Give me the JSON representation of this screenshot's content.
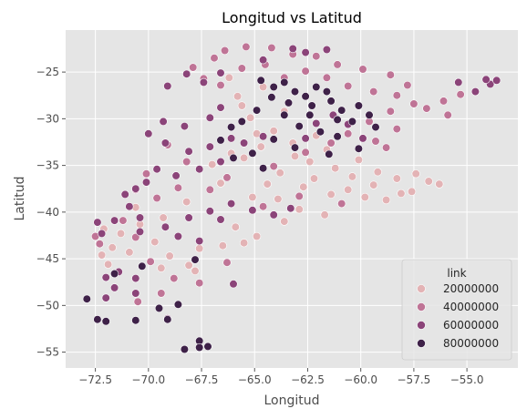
{
  "chart_data": {
    "type": "scatter",
    "title": "Longitud vs Latitud",
    "xlabel": "Longitud",
    "ylabel": "Latitud",
    "xlim": [
      -73.9,
      -52.6
    ],
    "ylim": [
      -56.7,
      -20.5
    ],
    "x_ticks": [
      -72.5,
      -70.0,
      -67.5,
      -65.0,
      -62.5,
      -60.0,
      -57.5,
      -55.0
    ],
    "x_tick_labels": [
      "−72.5",
      "−70.0",
      "−67.5",
      "−65.0",
      "−62.5",
      "−60.0",
      "−57.5",
      "−55.0"
    ],
    "y_ticks": [
      -25,
      -30,
      -35,
      -40,
      -45,
      -50,
      -55
    ],
    "y_tick_labels": [
      "−25",
      "−30",
      "−35",
      "−40",
      "−45",
      "−50",
      "−55"
    ],
    "grid": true,
    "legend": {
      "title": "link",
      "placement": "lower-right",
      "entries": [
        {
          "label": "20000000",
          "color": "#e3b3b5"
        },
        {
          "label": "40000000",
          "color": "#bf7496"
        },
        {
          "label": "60000000",
          "color": "#8b4479"
        },
        {
          "label": "80000000",
          "color": "#3e2148"
        }
      ]
    },
    "colors": {
      "background": "#e5e5e5",
      "grid": "#ffffff",
      "marker_edge": "#ffffff"
    },
    "series": [
      {
        "label": "20000000",
        "color": "#e3b3b5",
        "points": [
          [
            -65.5,
            -34.2
          ],
          [
            -64.7,
            -33.0
          ],
          [
            -63.8,
            -35.8
          ],
          [
            -62.4,
            -34.6
          ],
          [
            -61.2,
            -35.3
          ],
          [
            -60.4,
            -36.2
          ],
          [
            -59.2,
            -35.7
          ],
          [
            -58.3,
            -36.4
          ],
          [
            -57.4,
            -35.9
          ],
          [
            -56.8,
            -36.7
          ],
          [
            -56.3,
            -37.0
          ],
          [
            -58.1,
            -38.0
          ],
          [
            -59.8,
            -38.4
          ],
          [
            -61.4,
            -38.1
          ],
          [
            -62.7,
            -37.3
          ],
          [
            -63.9,
            -38.6
          ],
          [
            -62.9,
            -39.7
          ],
          [
            -61.7,
            -40.3
          ],
          [
            -60.6,
            -37.6
          ],
          [
            -59.4,
            -37.1
          ],
          [
            -58.8,
            -38.7
          ],
          [
            -57.6,
            -37.8
          ],
          [
            -63.2,
            -32.6
          ],
          [
            -62.1,
            -31.8
          ],
          [
            -64.1,
            -31.3
          ],
          [
            -65.2,
            -29.9
          ],
          [
            -63.6,
            -29.2
          ],
          [
            -65.8,
            -27.6
          ],
          [
            -64.6,
            -26.6
          ],
          [
            -66.2,
            -25.6
          ],
          [
            -65.6,
            -28.6
          ],
          [
            -64.9,
            -31.6
          ],
          [
            -66.1,
            -33.7
          ],
          [
            -67.0,
            -34.9
          ],
          [
            -63.1,
            -34.0
          ],
          [
            -62.2,
            -36.4
          ],
          [
            -60.1,
            -34.4
          ],
          [
            -61.6,
            -33.3
          ],
          [
            -64.4,
            -37.0
          ],
          [
            -65.1,
            -38.4
          ],
          [
            -66.6,
            -36.9
          ],
          [
            -68.2,
            -38.9
          ],
          [
            -69.3,
            -40.6
          ],
          [
            -70.4,
            -41.3
          ],
          [
            -71.3,
            -42.3
          ],
          [
            -71.7,
            -43.8
          ],
          [
            -72.2,
            -44.6
          ],
          [
            -71.9,
            -45.6
          ],
          [
            -70.9,
            -44.3
          ],
          [
            -69.7,
            -43.2
          ],
          [
            -69.0,
            -44.7
          ],
          [
            -68.1,
            -45.7
          ],
          [
            -67.6,
            -43.9
          ],
          [
            -66.5,
            -43.6
          ],
          [
            -65.5,
            -43.3
          ],
          [
            -65.9,
            -41.6
          ],
          [
            -64.9,
            -42.6
          ],
          [
            -63.6,
            -41.0
          ],
          [
            -70.6,
            -39.5
          ],
          [
            -72.1,
            -41.8
          ],
          [
            -69.4,
            -46.0
          ],
          [
            -67.8,
            -46.3
          ]
        ]
      },
      {
        "label": "40000000",
        "color": "#bf7496",
        "points": [
          [
            -66.4,
            -22.7
          ],
          [
            -65.4,
            -22.3
          ],
          [
            -64.2,
            -22.4
          ],
          [
            -63.2,
            -23.1
          ],
          [
            -62.1,
            -23.3
          ],
          [
            -61.1,
            -24.2
          ],
          [
            -59.9,
            -24.7
          ],
          [
            -58.6,
            -25.3
          ],
          [
            -57.8,
            -26.4
          ],
          [
            -58.3,
            -27.5
          ],
          [
            -59.4,
            -27.1
          ],
          [
            -60.6,
            -26.5
          ],
          [
            -61.6,
            -25.6
          ],
          [
            -62.6,
            -24.9
          ],
          [
            -63.6,
            -25.6
          ],
          [
            -64.5,
            -24.2
          ],
          [
            -65.6,
            -24.6
          ],
          [
            -66.9,
            -23.5
          ],
          [
            -67.9,
            -24.5
          ],
          [
            -67.4,
            -25.7
          ],
          [
            -66.6,
            -26.4
          ],
          [
            -57.5,
            -28.4
          ],
          [
            -56.9,
            -28.9
          ],
          [
            -56.1,
            -28.1
          ],
          [
            -55.3,
            -27.4
          ],
          [
            -55.9,
            -29.6
          ],
          [
            -58.6,
            -29.2
          ],
          [
            -59.6,
            -30.3
          ],
          [
            -60.6,
            -31.6
          ],
          [
            -59.3,
            -32.4
          ],
          [
            -58.3,
            -31.1
          ],
          [
            -58.8,
            -33.1
          ],
          [
            -61.4,
            -32.6
          ],
          [
            -62.6,
            -33.6
          ],
          [
            -64.1,
            -35.1
          ],
          [
            -66.3,
            -36.3
          ],
          [
            -67.1,
            -37.6
          ],
          [
            -68.6,
            -37.4
          ],
          [
            -69.6,
            -38.5
          ],
          [
            -70.6,
            -37.6
          ],
          [
            -70.1,
            -35.9
          ],
          [
            -68.2,
            -34.6
          ],
          [
            -69.1,
            -32.8
          ],
          [
            -70.6,
            -42.7
          ],
          [
            -71.2,
            -40.9
          ],
          [
            -72.3,
            -43.4
          ],
          [
            -72.5,
            -42.6
          ],
          [
            -69.9,
            -45.3
          ],
          [
            -68.8,
            -47.1
          ],
          [
            -69.4,
            -48.7
          ],
          [
            -70.5,
            -49.6
          ],
          [
            -67.6,
            -47.6
          ],
          [
            -66.3,
            -45.4
          ],
          [
            -64.6,
            -39.4
          ],
          [
            -62.9,
            -38.3
          ],
          [
            -60.9,
            -39.1
          ]
        ]
      },
      {
        "label": "60000000",
        "color": "#8b4479",
        "points": [
          [
            -63.2,
            -22.5
          ],
          [
            -62.6,
            -22.9
          ],
          [
            -64.6,
            -23.7
          ],
          [
            -61.6,
            -22.6
          ],
          [
            -55.4,
            -26.1
          ],
          [
            -54.6,
            -27.1
          ],
          [
            -53.9,
            -26.3
          ],
          [
            -53.6,
            -25.9
          ],
          [
            -54.1,
            -25.8
          ],
          [
            -66.6,
            -28.8
          ],
          [
            -67.1,
            -29.9
          ],
          [
            -68.3,
            -30.8
          ],
          [
            -69.3,
            -30.3
          ],
          [
            -70.0,
            -31.6
          ],
          [
            -69.2,
            -32.6
          ],
          [
            -68.1,
            -33.5
          ],
          [
            -67.1,
            -33.0
          ],
          [
            -66.1,
            -32.1
          ],
          [
            -65.5,
            -32.6
          ],
          [
            -66.6,
            -34.6
          ],
          [
            -67.6,
            -35.4
          ],
          [
            -68.7,
            -36.1
          ],
          [
            -69.6,
            -35.4
          ],
          [
            -70.1,
            -36.8
          ],
          [
            -70.6,
            -37.5
          ],
          [
            -71.1,
            -38.1
          ],
          [
            -70.9,
            -39.4
          ],
          [
            -70.4,
            -40.6
          ],
          [
            -71.6,
            -40.9
          ],
          [
            -72.4,
            -41.1
          ],
          [
            -72.2,
            -42.3
          ],
          [
            -70.4,
            -42.1
          ],
          [
            -69.2,
            -41.6
          ],
          [
            -68.1,
            -40.6
          ],
          [
            -67.1,
            -39.9
          ],
          [
            -66.1,
            -39.1
          ],
          [
            -65.1,
            -39.8
          ],
          [
            -64.1,
            -40.3
          ],
          [
            -63.3,
            -39.6
          ],
          [
            -68.6,
            -42.6
          ],
          [
            -67.6,
            -43.1
          ],
          [
            -66.6,
            -40.8
          ],
          [
            -66.0,
            -47.7
          ],
          [
            -70.6,
            -47.1
          ],
          [
            -71.6,
            -48.1
          ],
          [
            -72.0,
            -47.0
          ],
          [
            -71.4,
            -46.4
          ],
          [
            -72.0,
            -49.2
          ],
          [
            -69.1,
            -51.4
          ],
          [
            -70.6,
            -48.7
          ],
          [
            -61.3,
            -29.6
          ],
          [
            -62.1,
            -30.5
          ],
          [
            -60.6,
            -30.6
          ],
          [
            -59.9,
            -32.1
          ],
          [
            -64.6,
            -31.9
          ],
          [
            -62.6,
            -32.1
          ],
          [
            -67.4,
            -26.1
          ],
          [
            -68.2,
            -25.2
          ],
          [
            -69.1,
            -26.5
          ],
          [
            -66.6,
            -25.1
          ]
        ]
      },
      {
        "label": "80000000",
        "color": "#3e2148",
        "points": [
          [
            -64.7,
            -25.9
          ],
          [
            -64.1,
            -26.6
          ],
          [
            -63.6,
            -26.1
          ],
          [
            -63.1,
            -27.1
          ],
          [
            -62.6,
            -27.6
          ],
          [
            -62.1,
            -26.6
          ],
          [
            -61.6,
            -27.1
          ],
          [
            -61.4,
            -28.1
          ],
          [
            -62.3,
            -28.6
          ],
          [
            -63.4,
            -28.3
          ],
          [
            -64.2,
            -27.7
          ],
          [
            -60.9,
            -29.1
          ],
          [
            -60.1,
            -28.6
          ],
          [
            -59.6,
            -29.6
          ],
          [
            -60.4,
            -30.3
          ],
          [
            -61.1,
            -30.1
          ],
          [
            -59.3,
            -30.9
          ],
          [
            -62.9,
            -30.8
          ],
          [
            -61.9,
            -31.4
          ],
          [
            -64.1,
            -32.2
          ],
          [
            -66.1,
            -30.9
          ],
          [
            -66.6,
            -32.3
          ],
          [
            -66.0,
            -34.2
          ],
          [
            -65.1,
            -33.7
          ],
          [
            -64.6,
            -35.3
          ],
          [
            -63.6,
            -29.6
          ],
          [
            -64.9,
            -29.1
          ],
          [
            -65.6,
            -30.3
          ],
          [
            -62.4,
            -29.6
          ],
          [
            -61.1,
            -31.9
          ],
          [
            -60.1,
            -33.2
          ],
          [
            -61.5,
            -33.8
          ],
          [
            -63.1,
            -33.1
          ],
          [
            -72.9,
            -49.3
          ],
          [
            -72.4,
            -51.5
          ],
          [
            -72.0,
            -51.7
          ],
          [
            -70.6,
            -51.6
          ],
          [
            -69.1,
            -51.5
          ],
          [
            -68.3,
            -54.7
          ],
          [
            -67.6,
            -53.8
          ],
          [
            -67.6,
            -54.5
          ],
          [
            -67.2,
            -54.4
          ],
          [
            -69.5,
            -50.3
          ],
          [
            -68.6,
            -49.9
          ],
          [
            -71.6,
            -46.6
          ],
          [
            -70.3,
            -45.8
          ],
          [
            -67.8,
            -45.1
          ]
        ]
      }
    ]
  }
}
